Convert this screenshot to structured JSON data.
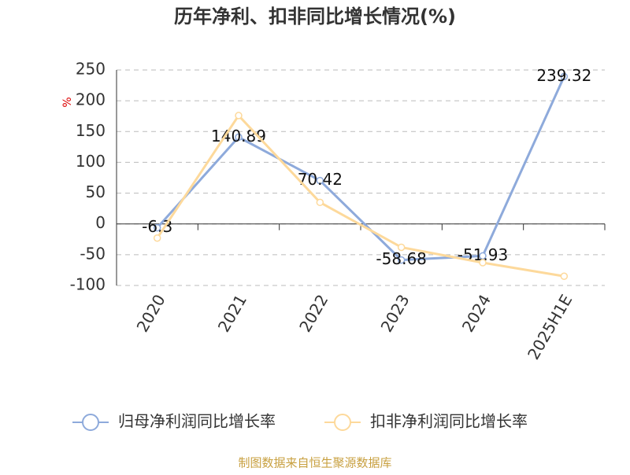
{
  "chart_data": {
    "type": "line",
    "title": "历年净利、扣非同比增长情况(%)",
    "y_label": "%",
    "categories": [
      "2020",
      "2021",
      "2022",
      "2023",
      "2024",
      "2025H1E"
    ],
    "series": [
      {
        "name": "归母净利润同比增长率",
        "color": "#8eaadb",
        "values": [
          -6.3,
          140.89,
          70.42,
          -58.68,
          -51.93,
          239.32
        ],
        "show_values": true
      },
      {
        "name": "扣非净利润同比增长率",
        "color": "#fdd99b",
        "values": [
          -23,
          176,
          35,
          -38,
          -63,
          -85
        ],
        "show_values": false
      }
    ],
    "ylim": [
      -100,
      250
    ],
    "yticks": [
      -100,
      -50,
      0,
      50,
      100,
      150,
      200,
      250
    ],
    "grid": true,
    "source": "制图数据来自恒生聚源数据库"
  }
}
